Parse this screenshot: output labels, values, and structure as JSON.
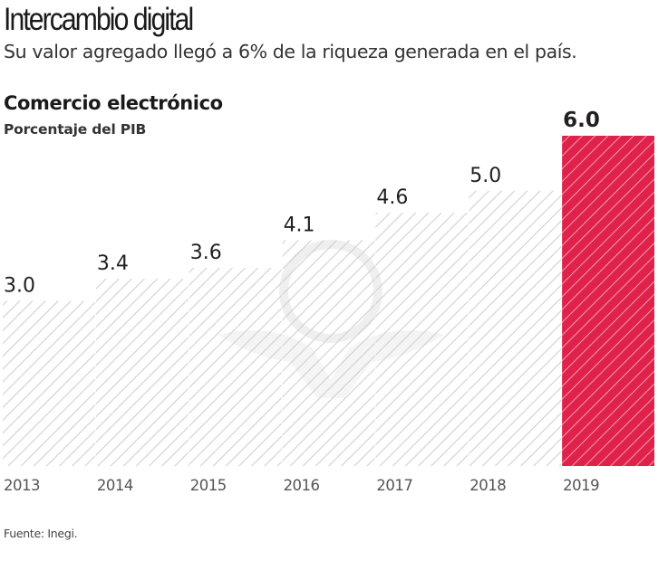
{
  "header": {
    "title": "Intercambio digital",
    "subtitle": "Su valor agregado llegó a 6% de la riqueza generada en el país."
  },
  "footer": {
    "source": "Fuente: Inegi."
  },
  "colors": {
    "highlight": "#e0224b",
    "bar_hatch": "#c8c8c8",
    "text": "#231f20"
  },
  "chart_data": {
    "type": "bar",
    "title": "Comercio electrónico",
    "subtitle": "Porcentaje del PIB",
    "xlabel": "",
    "ylabel": "Porcentaje del PIB",
    "categories": [
      "2013",
      "2014",
      "2015",
      "2016",
      "2017",
      "2018",
      "2019"
    ],
    "values": [
      3.0,
      3.4,
      3.6,
      4.1,
      4.6,
      5.0,
      6.0
    ],
    "value_labels": [
      "3.0",
      "3.4",
      "3.6",
      "4.1",
      "4.6",
      "5.0",
      "6.0"
    ],
    "highlight_index": 6,
    "ylim": [
      0,
      6.0
    ],
    "grid": false,
    "legend": "none"
  }
}
